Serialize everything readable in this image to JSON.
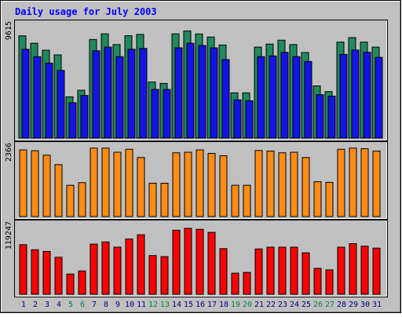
{
  "chart_data": {
    "type": "bar",
    "title": "Daily usage for July 2003",
    "categories": [
      "1",
      "2",
      "3",
      "4",
      "5",
      "6",
      "7",
      "8",
      "9",
      "10",
      "11",
      "12",
      "13",
      "14",
      "15",
      "16",
      "17",
      "18",
      "19",
      "20",
      "21",
      "22",
      "23",
      "24",
      "25",
      "26",
      "27",
      "28",
      "29",
      "30",
      "31"
    ],
    "weekend_days": [
      "5",
      "6",
      "12",
      "13",
      "19",
      "20",
      "26",
      "27"
    ],
    "panels": [
      {
        "id": "hits-pages",
        "axis_label": "9615",
        "ylim": [
          0,
          9615
        ],
        "series": [
          {
            "color": "#1f8a5c",
            "values": [
              8700,
              8070,
              7480,
              7080,
              3510,
              4070,
              8390,
              8870,
              7960,
              8710,
              8820,
              4770,
              4650,
              8870,
              9120,
              8860,
              8600,
              7920,
              3850,
              3850,
              7740,
              8000,
              8330,
              7960,
              7280,
              4440,
              3960,
              8170,
              8550,
              8170,
              7740
            ]
          },
          {
            "color": "#1414e6",
            "values": [
              7560,
              6930,
              6380,
              5760,
              3010,
              3630,
              7430,
              7740,
              6930,
              7560,
              7630,
              4140,
              4140,
              7680,
              8070,
              7880,
              7680,
              6680,
              3250,
              3180,
              6930,
              6990,
              7300,
              6930,
              6520,
              3690,
              3570,
              7120,
              7490,
              7300,
              6870
            ]
          }
        ]
      },
      {
        "id": "files",
        "axis_label": "2366",
        "ylim": [
          0,
          2366
        ],
        "series": [
          {
            "color": "#ff8c14",
            "values": [
              2260,
              2230,
              2080,
              1760,
              1060,
              1150,
              2320,
              2320,
              2180,
              2280,
              2000,
              1130,
              1130,
              2160,
              2180,
              2260,
              2140,
              2060,
              1060,
              1060,
              2240,
              2220,
              2160,
              2180,
              2000,
              1180,
              1160,
              2280,
              2320,
              2300,
              2220
            ]
          }
        ]
      },
      {
        "id": "kbytes",
        "axis_label": "119247",
        "ylim": [
          0,
          119247
        ],
        "series": [
          {
            "color": "#ff0000",
            "values": [
              85600,
              76800,
              74000,
              63900,
              34900,
              40200,
              86600,
              90300,
              81300,
              95400,
              102700,
              66800,
              65000,
              110600,
              113800,
              112100,
              106900,
              78800,
              36400,
              37700,
              78200,
              81300,
              81300,
              81300,
              71600,
              44700,
              42100,
              81300,
              87300,
              83100,
              79700
            ]
          }
        ]
      }
    ],
    "colors": {
      "background": "#c0c0c0",
      "title": "#0000ff",
      "tick_weekday": "#000080",
      "tick_weekend": "#008040"
    },
    "grid": false,
    "legend": "none"
  }
}
